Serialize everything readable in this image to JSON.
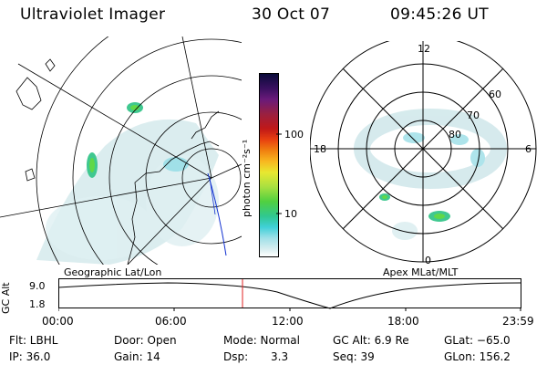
{
  "header": {
    "instrument": "Ultraviolet Imager",
    "date": "30 Oct 07",
    "time": "09:45:26 UT"
  },
  "colorbar": {
    "label": "photon cm⁻²s⁻¹",
    "ticks": [
      "100",
      "10"
    ],
    "colors": [
      "#0b0b3a",
      "#3a1060",
      "#6a1a7a",
      "#9a2040",
      "#c01818",
      "#e84010",
      "#f08010",
      "#f8b820",
      "#e8e830",
      "#a8e040",
      "#50d040",
      "#30c890",
      "#40d0d8",
      "#a0e0e8",
      "#d8eef0",
      "#ffffff"
    ]
  },
  "geo_map": {
    "label": "Geographic Lat/Lon"
  },
  "polar_plot": {
    "label": "Apex MLat/MLT",
    "mlt_labels": [
      "12",
      "18",
      "6",
      "0"
    ],
    "lat_labels": [
      "60",
      "70",
      "80"
    ]
  },
  "altitude_plot": {
    "ylabel": "GC Alt",
    "yticks": [
      "9.0",
      "1.8"
    ],
    "xticks": [
      "00:00",
      "06:00",
      "12:00",
      "18:00",
      "23:59"
    ]
  },
  "info": {
    "flt": "Flt: LBHL",
    "door": "Door: Open",
    "mode": "Mode: Normal",
    "gc_alt": "GC Alt: 6.9 Re",
    "glat": "GLat: −65.0",
    "ip": "IP: 36.0",
    "gain": "Gain: 14",
    "dsp_label": "Dsp:",
    "dsp_value": "3.3",
    "seq": "Seq: 39",
    "glon": "GLon: 156.2"
  }
}
